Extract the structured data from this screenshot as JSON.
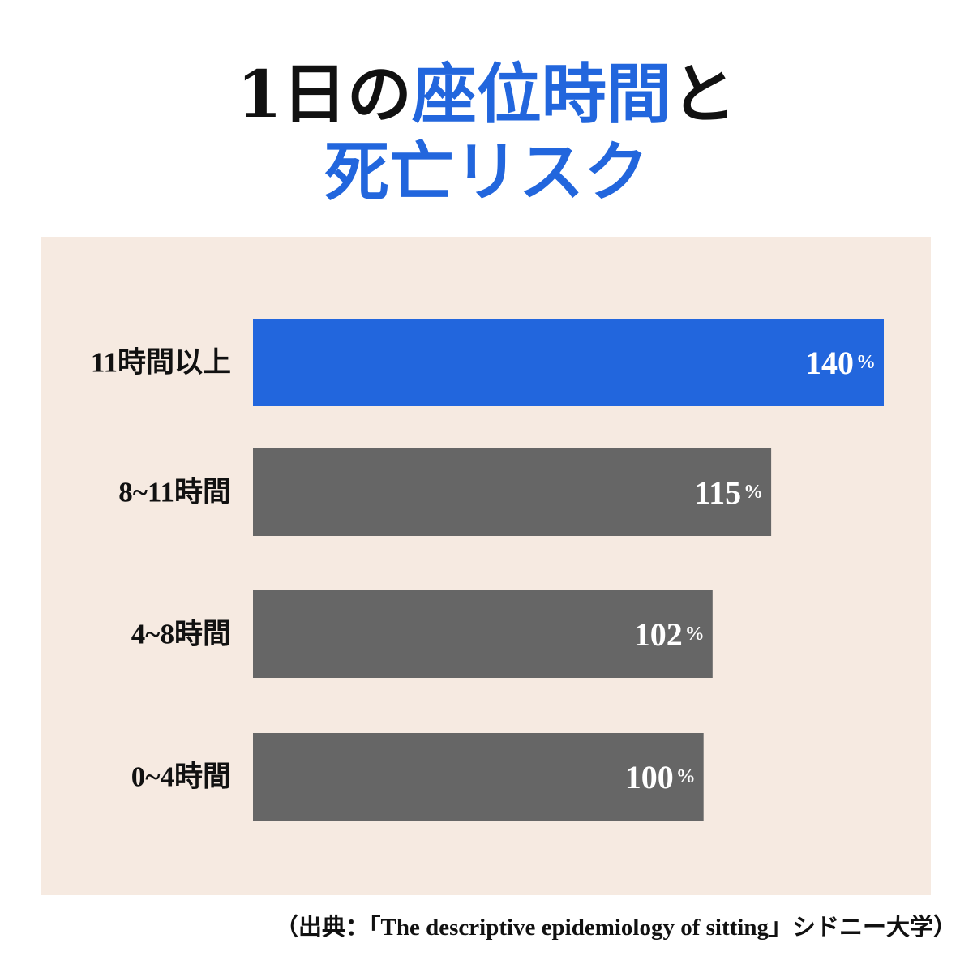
{
  "title": {
    "line1_prefix": "1日の",
    "line1_highlight": "座位時間",
    "line1_suffix": "と",
    "line2_highlight": "死亡リスク"
  },
  "colors": {
    "accent": "#2266dd",
    "bar_highlight": "#2266dd",
    "bar_default": "#666666",
    "panel_background": "#f6eae1",
    "title_text": "#111111",
    "value_text": "#ffffff"
  },
  "chart_data": {
    "type": "bar",
    "orientation": "horizontal",
    "categories": [
      "11時間以上",
      "8~11時間",
      "4~8時間",
      "0~4時間"
    ],
    "values": [
      140,
      115,
      102,
      100
    ],
    "value_labels": [
      "140",
      "115",
      "102",
      "100"
    ],
    "unit": "%",
    "highlight_index": 0,
    "title": "",
    "xlabel": "",
    "ylabel": "",
    "grid": false,
    "legend": "none"
  },
  "source": "（出典：「The descriptive epidemiology of sitting」シドニー大学）"
}
